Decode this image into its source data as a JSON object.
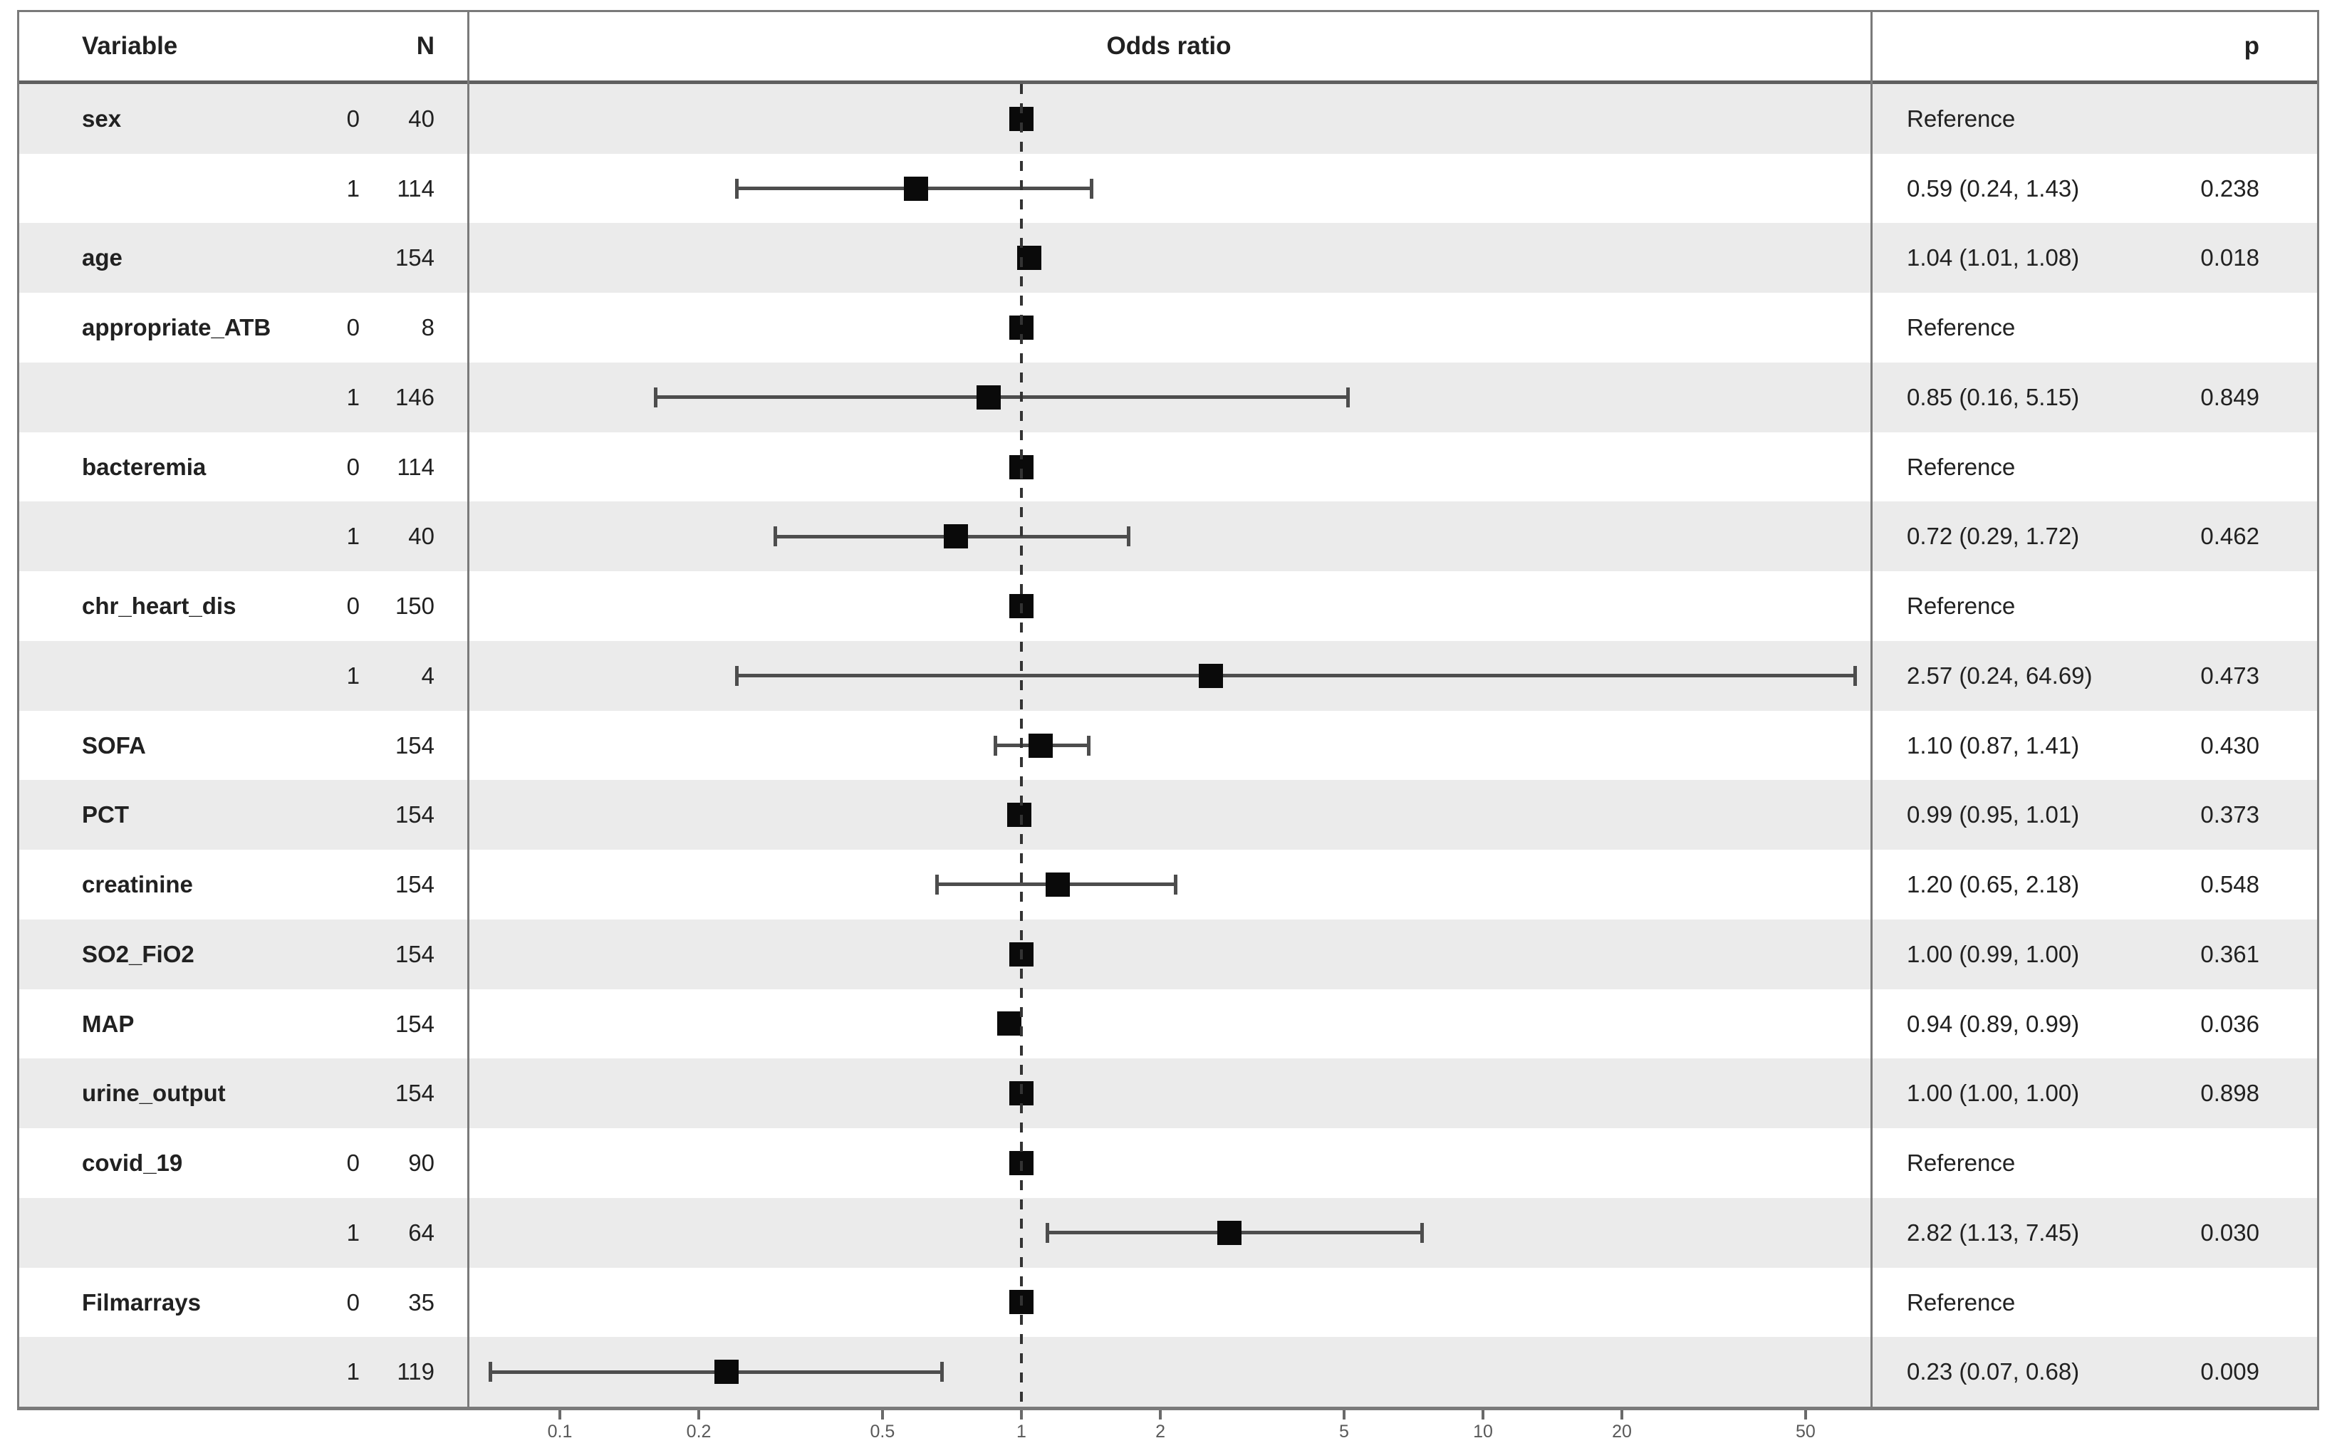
{
  "header": {
    "variable": "Variable",
    "n": "N",
    "odds_ratio": "Odds ratio",
    "p": "p"
  },
  "colors": {
    "stripe": "#ebebeb",
    "row_white": "#ffffff",
    "border": "#7a7a7a",
    "header_separator": "#5f5f5f",
    "marker": "#0a0a0a",
    "whisker": "#4d4d4d",
    "dashed_line": "#333333",
    "text": "#212121",
    "tick_text": "#595959"
  },
  "chart_data": {
    "type": "forest",
    "title": "Odds ratio",
    "x_scale": "log",
    "x_ticks": [
      0.1,
      0.2,
      0.5,
      1,
      2,
      5,
      10,
      20,
      50
    ],
    "x_tick_labels": [
      "0.1",
      "0.2",
      "0.5",
      "1",
      "2",
      "5",
      "10",
      "20",
      "50"
    ],
    "x_range": [
      0.05,
      70
    ],
    "reference_line": 1,
    "legend": "none",
    "rows": [
      {
        "variable": "sex",
        "level": "0",
        "n": "40",
        "or": 1.0,
        "ci_low": null,
        "ci_high": null,
        "estimate": "Reference",
        "p": "",
        "is_reference": true
      },
      {
        "variable": "",
        "level": "1",
        "n": "114",
        "or": 0.59,
        "ci_low": 0.24,
        "ci_high": 1.43,
        "estimate": "0.59 (0.24, 1.43)",
        "p": "0.238",
        "is_reference": false
      },
      {
        "variable": "age",
        "level": "",
        "n": "154",
        "or": 1.04,
        "ci_low": 1.01,
        "ci_high": 1.08,
        "estimate": "1.04 (1.01, 1.08)",
        "p": "0.018",
        "is_reference": false
      },
      {
        "variable": "appropriate_ATB",
        "level": "0",
        "n": "8",
        "or": 1.0,
        "ci_low": null,
        "ci_high": null,
        "estimate": "Reference",
        "p": "",
        "is_reference": true
      },
      {
        "variable": "",
        "level": "1",
        "n": "146",
        "or": 0.85,
        "ci_low": 0.16,
        "ci_high": 5.15,
        "estimate": "0.85 (0.16, 5.15)",
        "p": "0.849",
        "is_reference": false
      },
      {
        "variable": "bacteremia",
        "level": "0",
        "n": "114",
        "or": 1.0,
        "ci_low": null,
        "ci_high": null,
        "estimate": "Reference",
        "p": "",
        "is_reference": true
      },
      {
        "variable": "",
        "level": "1",
        "n": "40",
        "or": 0.72,
        "ci_low": 0.29,
        "ci_high": 1.72,
        "estimate": "0.72 (0.29, 1.72)",
        "p": "0.462",
        "is_reference": false
      },
      {
        "variable": "chr_heart_dis",
        "level": "0",
        "n": "150",
        "or": 1.0,
        "ci_low": null,
        "ci_high": null,
        "estimate": "Reference",
        "p": "",
        "is_reference": true
      },
      {
        "variable": "",
        "level": "1",
        "n": "4",
        "or": 2.57,
        "ci_low": 0.24,
        "ci_high": 64.69,
        "estimate": "2.57 (0.24, 64.69)",
        "p": "0.473",
        "is_reference": false
      },
      {
        "variable": "SOFA",
        "level": "",
        "n": "154",
        "or": 1.1,
        "ci_low": 0.87,
        "ci_high": 1.41,
        "estimate": "1.10 (0.87, 1.41)",
        "p": "0.430",
        "is_reference": false
      },
      {
        "variable": "PCT",
        "level": "",
        "n": "154",
        "or": 0.99,
        "ci_low": 0.95,
        "ci_high": 1.01,
        "estimate": "0.99 (0.95, 1.01)",
        "p": "0.373",
        "is_reference": false
      },
      {
        "variable": "creatinine",
        "level": "",
        "n": "154",
        "or": 1.2,
        "ci_low": 0.65,
        "ci_high": 2.18,
        "estimate": "1.20 (0.65, 2.18)",
        "p": "0.548",
        "is_reference": false
      },
      {
        "variable": "SO2_FiO2",
        "level": "",
        "n": "154",
        "or": 1.0,
        "ci_low": 0.99,
        "ci_high": 1.0,
        "estimate": "1.00 (0.99, 1.00)",
        "p": "0.361",
        "is_reference": false
      },
      {
        "variable": "MAP",
        "level": "",
        "n": "154",
        "or": 0.94,
        "ci_low": 0.89,
        "ci_high": 0.99,
        "estimate": "0.94 (0.89, 0.99)",
        "p": "0.036",
        "is_reference": false
      },
      {
        "variable": "urine_output",
        "level": "",
        "n": "154",
        "or": 1.0,
        "ci_low": 1.0,
        "ci_high": 1.0,
        "estimate": "1.00 (1.00, 1.00)",
        "p": "0.898",
        "is_reference": false
      },
      {
        "variable": "covid_19",
        "level": "0",
        "n": "90",
        "or": 1.0,
        "ci_low": null,
        "ci_high": null,
        "estimate": "Reference",
        "p": "",
        "is_reference": true
      },
      {
        "variable": "",
        "level": "1",
        "n": "64",
        "or": 2.82,
        "ci_low": 1.13,
        "ci_high": 7.45,
        "estimate": "2.82 (1.13, 7.45)",
        "p": "0.030",
        "is_reference": false
      },
      {
        "variable": "Filmarrays",
        "level": "0",
        "n": "35",
        "or": 1.0,
        "ci_low": null,
        "ci_high": null,
        "estimate": "Reference",
        "p": "",
        "is_reference": true
      },
      {
        "variable": "",
        "level": "1",
        "n": "119",
        "or": 0.23,
        "ci_low": 0.07,
        "ci_high": 0.68,
        "estimate": "0.23 (0.07, 0.68)",
        "p": "0.009",
        "is_reference": false
      }
    ]
  }
}
